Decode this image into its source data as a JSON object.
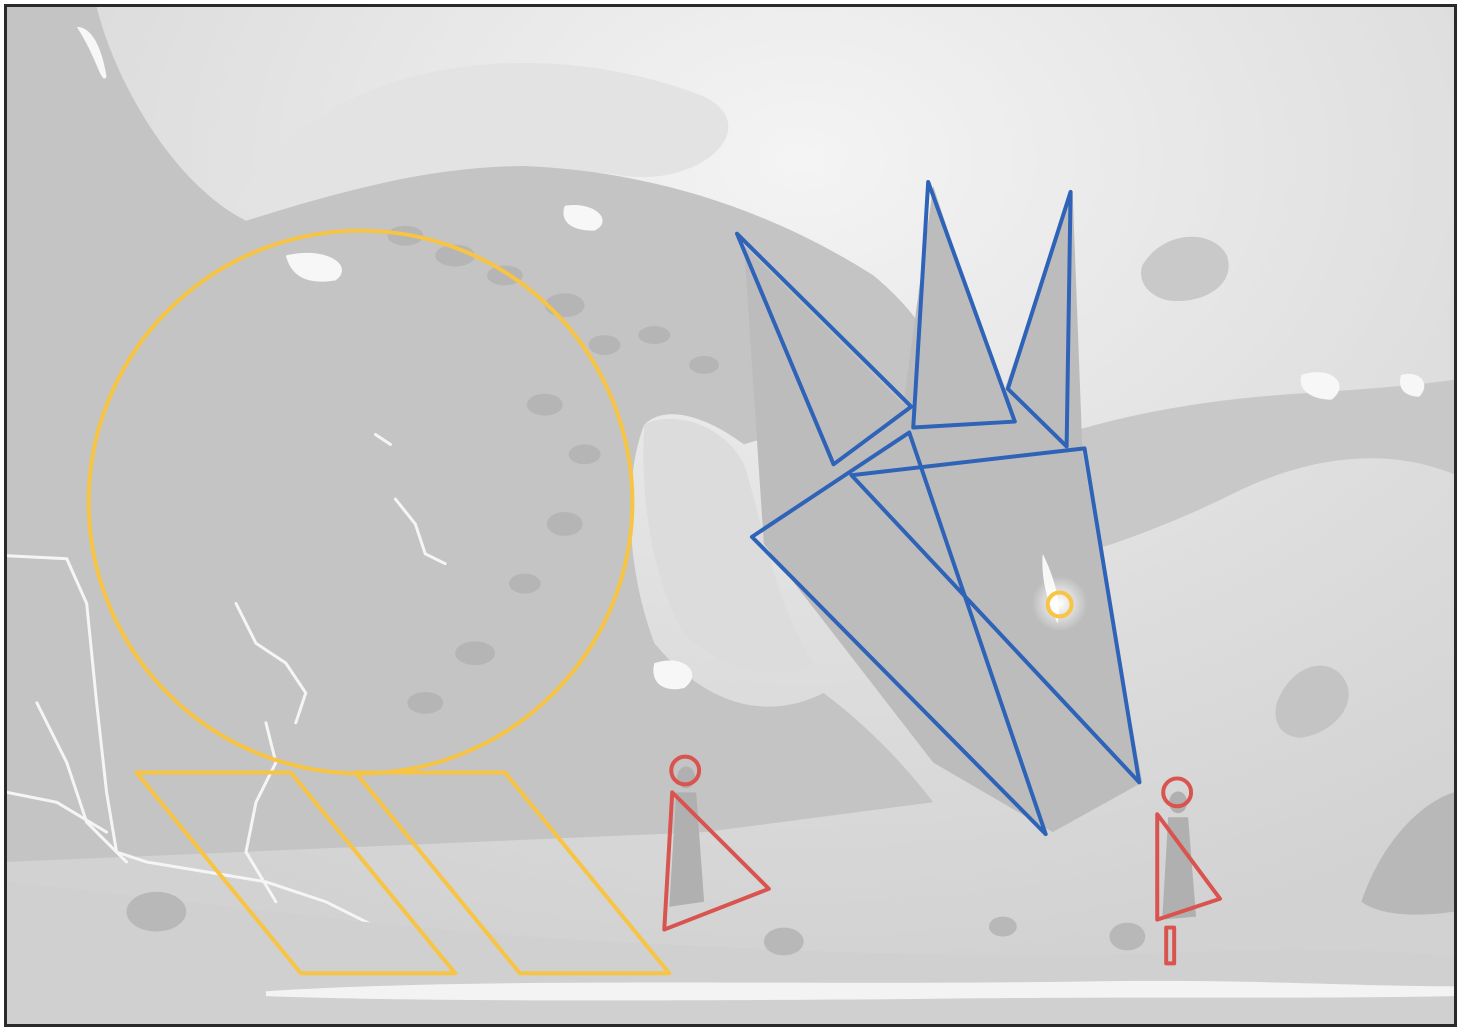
{
  "artwork": {
    "subject": "dragon-composition-study",
    "palette": {
      "background": "#d6d6d6",
      "sky_light": "#f1f1f1",
      "silhouette": "#c4c4c4",
      "silhouette_dark": "#b9b9b9",
      "highlight": "#ffffff",
      "overlay_yellow": "#f7c443",
      "overlay_blue": "#2e63b8",
      "overlay_red": "#d9534f"
    },
    "overlays": {
      "yellow": [
        "large-circle",
        "small-eye-circle",
        "left-parallelogram",
        "right-parallelogram"
      ],
      "blue": [
        "left-horn-triangle",
        "center-horn-triangle",
        "right-horn-triangle",
        "head-triangle-upper",
        "head-triangle-lower"
      ],
      "red": [
        "left-figure-head",
        "left-figure-body",
        "right-figure-head",
        "right-figure-body",
        "right-figure-leg"
      ]
    }
  }
}
